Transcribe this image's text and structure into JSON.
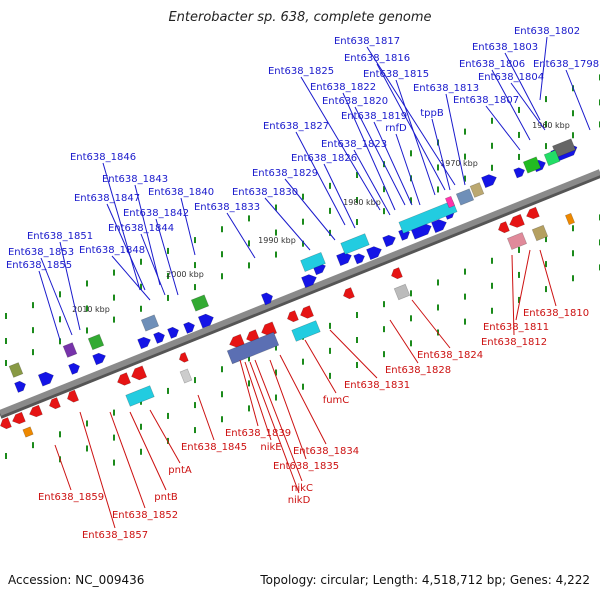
{
  "title": "Enterobacter sp. 638, complete genome",
  "accession": "Accession: NC_009436",
  "topology": "Topology: circular; Length: 4,518,712 bp; Genes: 4,222",
  "colors": {
    "plus_label": "#1a1acc",
    "minus_label": "#cc1111",
    "backbone": "#8a8a8a",
    "plus_gene": "#1414e6",
    "minus_gene": "#e61414",
    "rna": "#22cce0",
    "grid_dot": "#1b8a1b"
  },
  "ticks": [
    "1960 kbp",
    "1970 kbp",
    "1980 kbp",
    "1990 kbp",
    "2000 kbp",
    "2010 kbp"
  ],
  "plus_labels": [
    "Ent638_1802",
    "Ent638_1803",
    "Ent638_1798",
    "Ent638_1806",
    "Ent638_1804",
    "Ent638_1807",
    "Ent638_1817",
    "Ent638_1816",
    "Ent638_1815",
    "Ent638_1813",
    "tppB",
    "rnfD",
    "Ent638_1825",
    "Ent638_1822",
    "Ent638_1820",
    "Ent638_1819",
    "Ent638_1827",
    "Ent638_1823",
    "Ent638_1826",
    "Ent638_1829",
    "Ent638_1830",
    "Ent638_1833",
    "Ent638_1840",
    "Ent638_1846",
    "Ent638_1843",
    "Ent638_1847",
    "Ent638_1842",
    "Ent638_1844",
    "Ent638_1848",
    "Ent638_1851",
    "Ent638_1853",
    "Ent638_1855"
  ],
  "minus_labels": [
    "Ent638_1810",
    "Ent638_1811",
    "Ent638_1812",
    "Ent638_1824",
    "Ent638_1828",
    "Ent638_1831",
    "fumC",
    "Ent638_1834",
    "Ent638_1835",
    "nikC",
    "nikD",
    "nikE",
    "Ent638_1839",
    "Ent638_1845",
    "pntA",
    "pntB",
    "Ent638_1852",
    "Ent638_1857",
    "Ent638_1859"
  ]
}
